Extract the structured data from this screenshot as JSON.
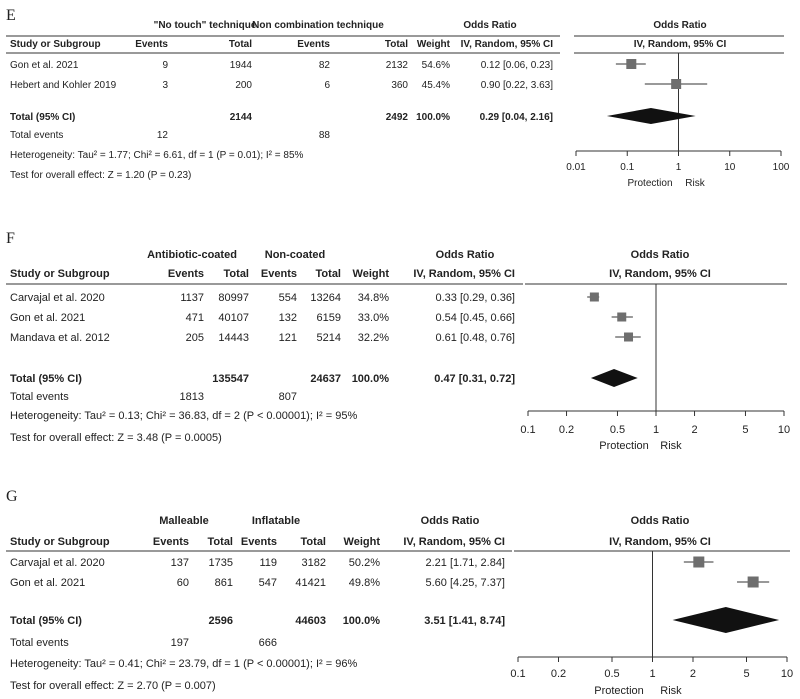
{
  "chart_data": [
    {
      "type": "forest",
      "panel_label": "E",
      "group1_title": "\"No touch\" technique",
      "group2_title": "Non combination technique",
      "columns": [
        "Study or Subgroup",
        "Events",
        "Total",
        "Events",
        "Total",
        "Weight",
        "IV, Random, 95% CI"
      ],
      "or_header": "Odds Ratio",
      "plot_header": "Odds Ratio",
      "plot_subheader": "IV, Random, 95% CI",
      "studies": [
        {
          "name": "Gon et al. 2021",
          "e1": "9",
          "t1": "1944",
          "e2": "82",
          "t2": "2132",
          "weight": "54.6%",
          "ci_text": "0.12 [0.06, 0.23]",
          "or": 0.12,
          "lo": 0.06,
          "hi": 0.23
        },
        {
          "name": "Hebert and Kohler 2019",
          "e1": "3",
          "t1": "200",
          "e2": "6",
          "t2": "360",
          "weight": "45.4%",
          "ci_text": "0.90 [0.22, 3.63]",
          "or": 0.9,
          "lo": 0.22,
          "hi": 3.63
        }
      ],
      "total": {
        "label": "Total (95% CI)",
        "t1": "2144",
        "t2": "2492",
        "weight": "100.0%",
        "ci_text": "0.29 [0.04, 2.16]",
        "or": 0.29,
        "lo": 0.04,
        "hi": 2.16
      },
      "total_events": {
        "label": "Total events",
        "e1": "12",
        "e2": "88"
      },
      "heterogeneity": "Heterogeneity: Tau² = 1.77; Chi² = 6.61, df = 1 (P = 0.01); I² = 85%",
      "overall": "Test for overall effect: Z = 1.20 (P = 0.23)",
      "axis_ticks": [
        0.01,
        0.1,
        1,
        10,
        100
      ],
      "axis_tick_labels": [
        "0.01",
        "0.1",
        "1",
        "10",
        "100"
      ],
      "xlim": [
        0.01,
        100
      ],
      "x_scale": "log",
      "axis_left_label": "Protection",
      "axis_right_label": "Risk"
    },
    {
      "type": "forest",
      "panel_label": "F",
      "group1_title": "Antibiotic-coated",
      "group2_title": "Non-coated",
      "columns": [
        "Study or Subgroup",
        "Events",
        "Total",
        "Events",
        "Total",
        "Weight",
        "IV, Random, 95% CI"
      ],
      "or_header": "Odds Ratio",
      "plot_header": "Odds Ratio",
      "plot_subheader": "IV, Random, 95% CI",
      "studies": [
        {
          "name": "Carvajal et al. 2020",
          "e1": "1137",
          "t1": "80997",
          "e2": "554",
          "t2": "13264",
          "weight": "34.8%",
          "ci_text": "0.33 [0.29, 0.36]",
          "or": 0.33,
          "lo": 0.29,
          "hi": 0.36
        },
        {
          "name": "Gon et al. 2021",
          "e1": "471",
          "t1": "40107",
          "e2": "132",
          "t2": "6159",
          "weight": "33.0%",
          "ci_text": "0.54 [0.45, 0.66]",
          "or": 0.54,
          "lo": 0.45,
          "hi": 0.66
        },
        {
          "name": "Mandava et al. 2012",
          "e1": "205",
          "t1": "14443",
          "e2": "121",
          "t2": "5214",
          "weight": "32.2%",
          "ci_text": "0.61 [0.48, 0.76]",
          "or": 0.61,
          "lo": 0.48,
          "hi": 0.76
        }
      ],
      "total": {
        "label": "Total (95% CI)",
        "t1": "135547",
        "t2": "24637",
        "weight": "100.0%",
        "ci_text": "0.47 [0.31, 0.72]",
        "or": 0.47,
        "lo": 0.31,
        "hi": 0.72
      },
      "total_events": {
        "label": "Total events",
        "e1": "1813",
        "e2": "807"
      },
      "heterogeneity": "Heterogeneity: Tau² = 0.13; Chi² = 36.83, df = 2 (P < 0.00001); I² = 95%",
      "overall": "Test for overall effect: Z = 3.48 (P = 0.0005)",
      "axis_ticks": [
        0.1,
        0.2,
        0.5,
        1,
        2,
        5,
        10
      ],
      "axis_tick_labels": [
        "0.1",
        "0.2",
        "0.5",
        "1",
        "2",
        "5",
        "10"
      ],
      "xlim": [
        0.1,
        10
      ],
      "x_scale": "log",
      "axis_left_label": "Protection",
      "axis_right_label": "Risk"
    },
    {
      "type": "forest",
      "panel_label": "G",
      "group1_title": "Malleable",
      "group2_title": "Inflatable",
      "columns": [
        "Study or Subgroup",
        "Events",
        "Total",
        "Events",
        "Total",
        "Weight",
        "IV, Random, 95% CI"
      ],
      "or_header": "Odds Ratio",
      "plot_header": "Odds Ratio",
      "plot_subheader": "IV, Random, 95% CI",
      "studies": [
        {
          "name": "Carvajal et al. 2020",
          "e1": "137",
          "t1": "1735",
          "e2": "119",
          "t2": "3182",
          "weight": "50.2%",
          "ci_text": "2.21 [1.71, 2.84]",
          "or": 2.21,
          "lo": 1.71,
          "hi": 2.84
        },
        {
          "name": "Gon et al. 2021",
          "e1": "60",
          "t1": "861",
          "e2": "547",
          "t2": "41421",
          "weight": "49.8%",
          "ci_text": "5.60 [4.25, 7.37]",
          "or": 5.6,
          "lo": 4.25,
          "hi": 7.37
        }
      ],
      "total": {
        "label": "Total (95% CI)",
        "t1": "2596",
        "t2": "44603",
        "weight": "100.0%",
        "ci_text": "3.51 [1.41, 8.74]",
        "or": 3.51,
        "lo": 1.41,
        "hi": 8.74
      },
      "total_events": {
        "label": "Total events",
        "e1": "197",
        "e2": "666"
      },
      "heterogeneity": "Heterogeneity: Tau² = 0.41; Chi² = 23.79, df = 1 (P < 0.00001); I² = 96%",
      "overall": "Test for overall effect: Z = 2.70 (P = 0.007)",
      "axis_ticks": [
        0.1,
        0.2,
        0.5,
        1,
        2,
        5,
        10
      ],
      "axis_tick_labels": [
        "0.1",
        "0.2",
        "0.5",
        "1",
        "2",
        "5",
        "10"
      ],
      "xlim": [
        0.1,
        10
      ],
      "x_scale": "log",
      "axis_left_label": "Protection",
      "axis_right_label": "Risk"
    }
  ],
  "colors": {
    "marker": "#6e6e6e",
    "diamond": "#111111",
    "text": "#222222",
    "lines": "#333333"
  }
}
